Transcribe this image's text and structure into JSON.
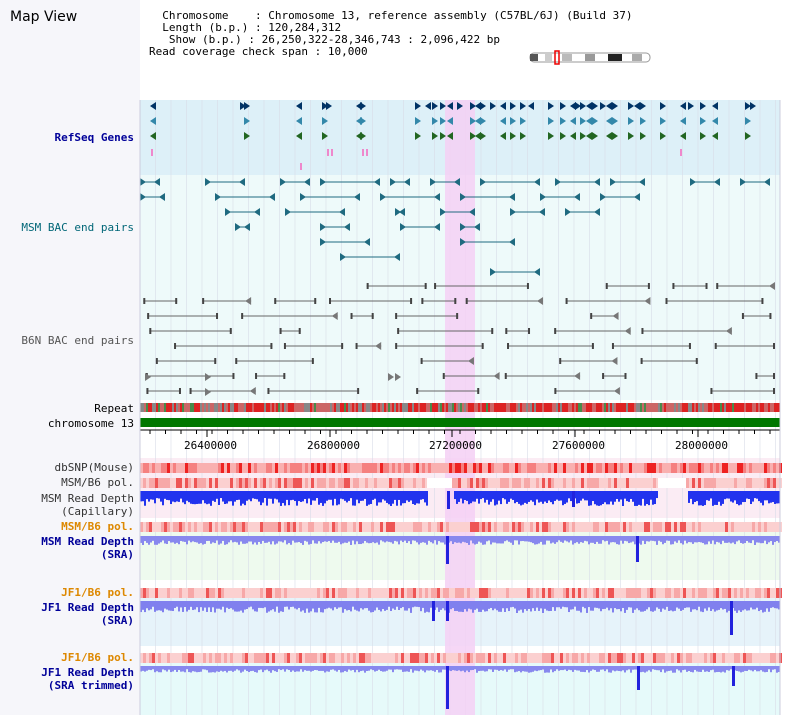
{
  "page_title": "Map View",
  "info": {
    "chromosome_key": "Chromosome",
    "chromosome_value": "Chromosome 13, reference assembly (C57BL/6J) (Build 37)",
    "length_key": "Length (b.p.)",
    "length_value": "120,284,312",
    "show_key": "Show (b.p.)",
    "show_value": "26,250,322-28,346,743 : 2,096,422 bp",
    "span_key": "Read coverage check span",
    "span_value": "10,000"
  },
  "tracks": {
    "refseq": "RefSeq Genes",
    "msm_bac": "MSM BAC end pairs",
    "b6n_bac": "B6N BAC end pairs",
    "repeat": "Repeat",
    "chromosome": "chromosome 13",
    "dbsnp": "dbSNP(Mouse)",
    "msm_pol1": "MSM/B6 pol.",
    "msm_depth_cap_1": "MSM Read Depth",
    "msm_depth_cap_2": "(Capillary)",
    "msm_pol2": "MSM/B6 pol.",
    "msm_depth_sra_1": "MSM Read Depth",
    "msm_depth_sra_2": "(SRA)",
    "jf1_pol1": "JF1/B6 pol.",
    "jf1_depth_1": "JF1 Read Depth",
    "jf1_depth_2": "(SRA)",
    "jf1_pol2": "JF1/B6 pol.",
    "jf1_trim_1": "JF1 Read Depth",
    "jf1_trim_2": "(SRA trimmed)"
  },
  "axis_ticks": [
    "26400000",
    "26800000",
    "27200000",
    "27600000",
    "28000000"
  ],
  "colors": {
    "label_blue": "#000099",
    "label_orange": "#dd8800",
    "refseq_bg": "#ddf0f8",
    "track_bg": "#e8fafa",
    "highlight": "#f5d0f5",
    "chromosome_bar": "#007700"
  }
}
